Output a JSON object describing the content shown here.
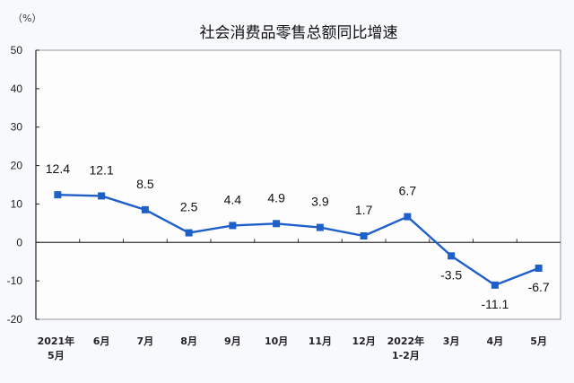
{
  "chart_data": {
    "type": "line",
    "title": "社会消费品零售总额同比增速",
    "unit_label": "（%）",
    "xlabel": "",
    "ylabel": "%",
    "ylim": [
      -20,
      50
    ],
    "yticks": [
      50,
      40,
      30,
      20,
      10,
      0,
      -10,
      -20
    ],
    "grid": false,
    "legend": null,
    "categories": [
      [
        "2021年",
        "5月"
      ],
      [
        "6月"
      ],
      [
        "7月"
      ],
      [
        "8月"
      ],
      [
        "9月"
      ],
      [
        "10月"
      ],
      [
        "11月"
      ],
      [
        "12月"
      ],
      [
        "2022年",
        "1-2月"
      ],
      [
        "3月"
      ],
      [
        "4月"
      ],
      [
        "5月"
      ]
    ],
    "series": [
      {
        "name": "社会消费品零售总额同比增速",
        "color": "#1f5fc8",
        "values": [
          12.4,
          12.1,
          8.5,
          2.5,
          4.4,
          4.9,
          3.9,
          1.7,
          6.7,
          -3.5,
          -11.1,
          -6.7
        ],
        "labels": [
          "12.4",
          "12.1",
          "8.5",
          "2.5",
          "4.4",
          "4.9",
          "3.9",
          "1.7",
          "6.7",
          "-3.5",
          "-11.1",
          "-6.7"
        ]
      }
    ]
  }
}
